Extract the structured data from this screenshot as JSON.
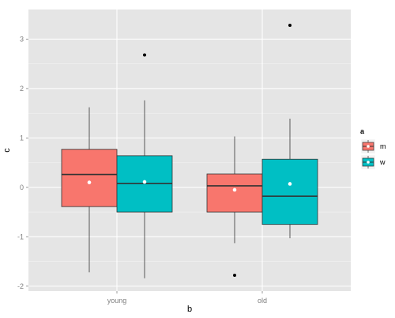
{
  "chart_data": {
    "type": "boxplot",
    "xlabel": "b",
    "ylabel": "c",
    "categories": [
      "young",
      "old"
    ],
    "ylim": [
      -2.1,
      3.6
    ],
    "yticks": [
      -2,
      -1,
      0,
      1,
      2,
      3
    ],
    "grid": true,
    "legend_placement": "right",
    "legend_title": "a",
    "series": [
      {
        "name": "m",
        "color": "#F8766D",
        "boxes": [
          {
            "category": "young",
            "whisker_low": -1.72,
            "q1": -0.39,
            "median": 0.26,
            "q3": 0.77,
            "whisker_high": 1.62,
            "mean": 0.1,
            "outliers": []
          },
          {
            "category": "old",
            "whisker_low": -1.13,
            "q1": -0.5,
            "median": 0.03,
            "q3": 0.27,
            "whisker_high": 1.03,
            "mean": -0.05,
            "outliers": [
              -1.78
            ]
          }
        ]
      },
      {
        "name": "w",
        "color": "#00BFC4",
        "boxes": [
          {
            "category": "young",
            "whisker_low": -1.84,
            "q1": -0.5,
            "median": 0.08,
            "q3": 0.64,
            "whisker_high": 1.76,
            "mean": 0.11,
            "outliers": [
              2.68
            ]
          },
          {
            "category": "old",
            "whisker_low": -1.03,
            "q1": -0.75,
            "median": -0.18,
            "q3": 0.57,
            "whisker_high": 1.39,
            "mean": 0.07,
            "outliers": [
              3.28
            ]
          }
        ]
      }
    ]
  }
}
